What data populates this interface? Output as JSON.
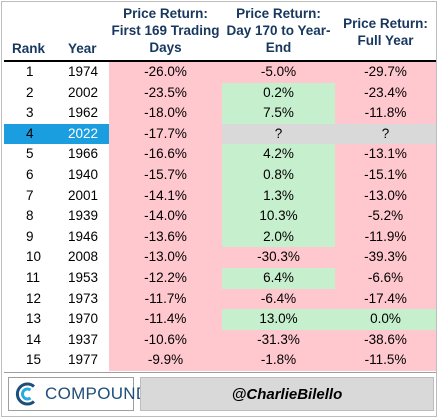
{
  "header": {
    "rank": "Rank",
    "year": "Year",
    "col1": "Price Return: First 169 Trading Days",
    "col2": "Price Return: Day 170 to Year-End",
    "col3": "Price Return: Full Year"
  },
  "rows": [
    {
      "rank": "1",
      "year": "1974",
      "first169": "-26.0%",
      "rest": "-5.0%",
      "full": "-29.7%",
      "rest_state": "neg",
      "full_state": "neg"
    },
    {
      "rank": "2",
      "year": "2002",
      "first169": "-23.5%",
      "rest": "0.2%",
      "full": "-23.4%",
      "rest_state": "pos",
      "full_state": "neg"
    },
    {
      "rank": "3",
      "year": "1962",
      "first169": "-18.0%",
      "rest": "7.5%",
      "full": "-11.8%",
      "rest_state": "pos",
      "full_state": "neg"
    },
    {
      "rank": "4",
      "year": "2022",
      "first169": "-17.7%",
      "rest": "?",
      "full": "?",
      "rest_state": "unk",
      "full_state": "unk",
      "highlight": true
    },
    {
      "rank": "5",
      "year": "1966",
      "first169": "-16.6%",
      "rest": "4.2%",
      "full": "-13.1%",
      "rest_state": "pos",
      "full_state": "neg"
    },
    {
      "rank": "6",
      "year": "1940",
      "first169": "-15.7%",
      "rest": "0.8%",
      "full": "-15.1%",
      "rest_state": "pos",
      "full_state": "neg"
    },
    {
      "rank": "7",
      "year": "2001",
      "first169": "-14.1%",
      "rest": "1.3%",
      "full": "-13.0%",
      "rest_state": "pos",
      "full_state": "neg"
    },
    {
      "rank": "8",
      "year": "1939",
      "first169": "-14.0%",
      "rest": "10.3%",
      "full": "-5.2%",
      "rest_state": "pos",
      "full_state": "neg"
    },
    {
      "rank": "9",
      "year": "1946",
      "first169": "-13.6%",
      "rest": "2.0%",
      "full": "-11.9%",
      "rest_state": "pos",
      "full_state": "neg"
    },
    {
      "rank": "10",
      "year": "2008",
      "first169": "-13.0%",
      "rest": "-30.3%",
      "full": "-39.3%",
      "rest_state": "neg",
      "full_state": "neg"
    },
    {
      "rank": "11",
      "year": "1953",
      "first169": "-12.2%",
      "rest": "6.4%",
      "full": "-6.6%",
      "rest_state": "pos",
      "full_state": "neg"
    },
    {
      "rank": "12",
      "year": "1973",
      "first169": "-11.7%",
      "rest": "-6.4%",
      "full": "-17.4%",
      "rest_state": "neg",
      "full_state": "neg"
    },
    {
      "rank": "13",
      "year": "1970",
      "first169": "-11.4%",
      "rest": "13.0%",
      "full": "0.0%",
      "rest_state": "pos",
      "full_state": "pos"
    },
    {
      "rank": "14",
      "year": "1937",
      "first169": "-10.6%",
      "rest": "-31.3%",
      "full": "-38.6%",
      "rest_state": "neg",
      "full_state": "neg"
    },
    {
      "rank": "15",
      "year": "1977",
      "first169": "-9.9%",
      "rest": "-1.8%",
      "full": "-11.5%",
      "rest_state": "neg",
      "full_state": "neg"
    }
  ],
  "footer": {
    "logo_text": "COMPOUND",
    "handle": "@CharlieBilello"
  },
  "colors": {
    "header_text": "#17375e",
    "negative_fill": "#ffc7ce",
    "positive_fill": "#c6efce",
    "unknown_fill": "#d9d9d9",
    "highlight_fill": "#1a9ee0"
  }
}
